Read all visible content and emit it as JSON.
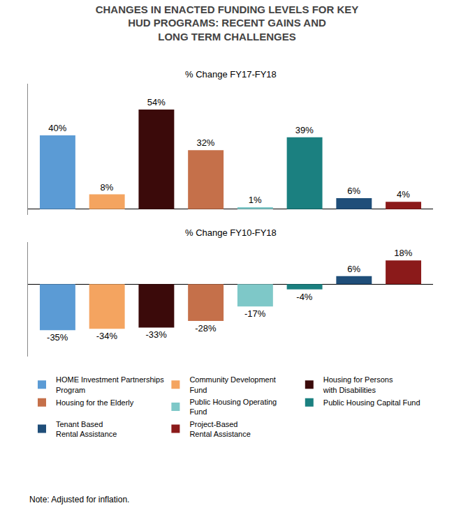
{
  "chart_data": [
    {
      "type": "bar",
      "title": "CHANGES IN ENACTED FUNDING LEVELS FOR KEY\nHUD PROGRAMS: RECENT GAINS AND\nLONG TERM CHALLENGES",
      "subtitle": "% Change FY17-FY18",
      "categories": [
        "HOME Investment Partnerships\nProgram",
        "Community Development\nFund",
        "Housing for Persons\nwith Disabilities",
        "Housing for the Elderly",
        "Public Housing Operating\nFund",
        "Public Housing Capital Fund",
        "Tenant Based\nRental Assistance",
        "Project-Based\nRental Assistance"
      ],
      "values": [
        40,
        8,
        54,
        32,
        1,
        39,
        6,
        4
      ],
      "value_labels": [
        "40%",
        "8%",
        "54%",
        "32%",
        "1%",
        "39%",
        "6%",
        "4%"
      ],
      "colors": [
        "#5B9BD5",
        "#F4A460",
        "#3B0A0A",
        "#C5704A",
        "#7EC8C8",
        "#1B8080",
        "#1F4E79",
        "#8B1A1A"
      ],
      "ylim": [
        -3,
        68
      ],
      "grid": false,
      "tick_labels": false,
      "data_labels": true
    },
    {
      "type": "bar",
      "subtitle": "% Change FY10-FY18",
      "categories": [
        "HOME Investment Partnerships\nProgram",
        "Community Development\nFund",
        "Housing for Persons\nwith Disabilities",
        "Housing for the Elderly",
        "Public Housing Operating\nFund",
        "Public Housing Capital Fund",
        "Tenant Based\nRental Assistance",
        "Project-Based\nRental Assistance"
      ],
      "values": [
        -35,
        -34,
        -33,
        -28,
        -17,
        -4,
        6,
        18
      ],
      "value_labels": [
        "-35%",
        "-34%",
        "-33%",
        "-28%",
        "-17%",
        "-4%",
        "6%",
        "18%"
      ],
      "colors": [
        "#5B9BD5",
        "#F4A460",
        "#3B0A0A",
        "#C5704A",
        "#7EC8C8",
        "#1B8080",
        "#1F4E79",
        "#8B1A1A"
      ],
      "ylim": [
        -55,
        32
      ],
      "grid": false,
      "tick_labels": false,
      "data_labels": true,
      "legend": "bottom",
      "annotations": [
        "Note: Adjusted for inflation."
      ]
    }
  ]
}
